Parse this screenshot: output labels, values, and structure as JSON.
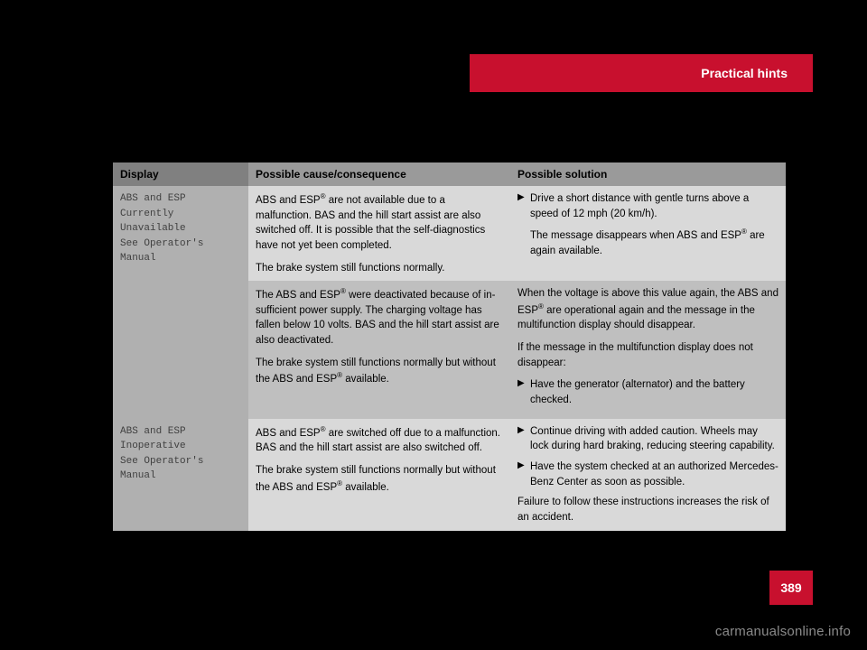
{
  "header": {
    "tab_label": "Practical hints"
  },
  "table": {
    "columns": {
      "display": "Display",
      "cause": "Possible cause/consequence",
      "solution": "Possible solution"
    },
    "rows": [
      {
        "display_lines": [
          "ABS and ESP",
          "Currently Unavailable",
          "See Operator's Manual"
        ],
        "cause_paras": [
          "ABS and ESP® are not available due to a malfunction. BAS and the hill start assist are also switched off. It is possible that the self-diagnostics have not yet been completed.",
          "The brake system still functions normally."
        ],
        "solution": {
          "bullets": [
            "Drive a short distance with gentle turns above a speed of 12 mph (20 km/h).",
            "The message disappears when ABS and ESP® are again available."
          ],
          "paras_before": [],
          "paras_after": []
        }
      },
      {
        "display_lines": [],
        "cause_paras": [
          "The ABS and ESP® were deactivated because of in-sufficient power supply. The charging voltage has fallen below 10 volts. BAS and the hill start assist are also deactivated.",
          "The brake system still functions normally but without the ABS and ESP® available."
        ],
        "solution": {
          "paras_before": [
            "When the voltage is above this value again, the ABS and ESP® are operational again and the message in the multifunction display should disappear.",
            "If the message in the multifunction display does not disappear:"
          ],
          "bullets": [
            "Have the generator (alternator) and the battery checked."
          ],
          "paras_after": []
        }
      },
      {
        "display_lines": [
          "ABS and ESP",
          "Inoperative",
          "See Operator's Manual"
        ],
        "cause_paras": [
          "ABS and ESP® are switched off due to a malfunction. BAS and the hill start assist are also switched off.",
          "The brake system still functions normally but without the ABS and ESP® available."
        ],
        "solution": {
          "paras_before": [],
          "bullets": [
            "Continue driving with added caution. Wheels may lock during hard braking, reducing steering capability.",
            "Have the system checked at an authorized Mercedes-Benz Center as soon as possible."
          ],
          "paras_after": [
            "Failure to follow these instructions increases the risk of an accident."
          ]
        }
      }
    ]
  },
  "page_number": "389",
  "watermark": "carmanualsonline.info",
  "colors": {
    "brand_red": "#c8102e",
    "page_bg": "#000000"
  }
}
